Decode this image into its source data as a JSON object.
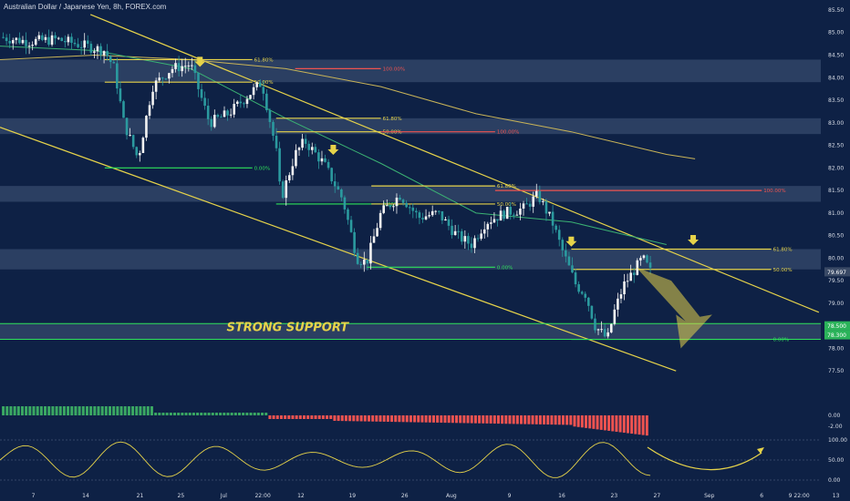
{
  "title": "Australian Dollar / Japanese Yen, 8h, FOREX.com",
  "annotation": "STRONG SUPPORT",
  "colors": {
    "background": "#0e2145",
    "up": "#f2f2f2",
    "down": "#2b9a9f",
    "trend": "#e6d34a",
    "green": "#2ee35b",
    "red": "#ef5350",
    "zone": "#4f6486"
  },
  "chart_data": {
    "type": "candlestick",
    "symbol": "AUDJPY",
    "timeframe": "8h",
    "ylim": [
      77.0,
      85.6
    ],
    "yticks": [
      "85.50",
      "85.00",
      "84.50",
      "84.00",
      "83.50",
      "83.00",
      "82.50",
      "82.00",
      "81.50",
      "81.00",
      "80.50",
      "80.00",
      "79.50",
      "79.00",
      "78.50",
      "78.00",
      "77.50"
    ],
    "xticks": [
      {
        "label": "7",
        "t": 0.035
      },
      {
        "label": "14",
        "t": 0.09
      },
      {
        "label": "21",
        "t": 0.147
      },
      {
        "label": "25",
        "t": 0.19
      },
      {
        "label": "Jul",
        "t": 0.235
      },
      {
        "label": "22:00",
        "t": 0.276
      },
      {
        "label": "12",
        "t": 0.316
      },
      {
        "label": "19",
        "t": 0.37
      },
      {
        "label": "26",
        "t": 0.425
      },
      {
        "label": "Aug",
        "t": 0.474
      },
      {
        "label": "9",
        "t": 0.535
      },
      {
        "label": "16",
        "t": 0.59
      },
      {
        "label": "23",
        "t": 0.645
      },
      {
        "label": "27",
        "t": 0.69
      },
      {
        "label": "Sep",
        "t": 0.745
      },
      {
        "label": "6",
        "t": 0.8
      },
      {
        "label": "9",
        "t": 0.83
      },
      {
        "label": "22:00",
        "t": 0.842
      },
      {
        "label": "13",
        "t": 0.878
      }
    ],
    "price_path": [
      [
        0.0,
        84.9
      ],
      [
        0.03,
        84.8
      ],
      [
        0.06,
        84.85
      ],
      [
        0.09,
        84.7
      ],
      [
        0.11,
        84.6
      ],
      [
        0.12,
        84.2
      ],
      [
        0.13,
        83.0
      ],
      [
        0.145,
        82.2
      ],
      [
        0.16,
        83.8
      ],
      [
        0.18,
        84.2
      ],
      [
        0.2,
        84.3
      ],
      [
        0.22,
        83.0
      ],
      [
        0.24,
        83.2
      ],
      [
        0.26,
        83.6
      ],
      [
        0.275,
        83.9
      ],
      [
        0.29,
        82.4
      ],
      [
        0.295,
        81.3
      ],
      [
        0.31,
        82.3
      ],
      [
        0.32,
        82.6
      ],
      [
        0.34,
        82.1
      ],
      [
        0.36,
        81.3
      ],
      [
        0.375,
        80.0
      ],
      [
        0.385,
        79.9
      ],
      [
        0.4,
        81.0
      ],
      [
        0.42,
        81.4
      ],
      [
        0.44,
        80.9
      ],
      [
        0.46,
        81.0
      ],
      [
        0.48,
        80.5
      ],
      [
        0.495,
        80.3
      ],
      [
        0.51,
        80.8
      ],
      [
        0.53,
        81.0
      ],
      [
        0.55,
        81.1
      ],
      [
        0.565,
        81.4
      ],
      [
        0.58,
        80.8
      ],
      [
        0.59,
        80.2
      ],
      [
        0.605,
        79.4
      ],
      [
        0.615,
        79.2
      ],
      [
        0.625,
        78.5
      ],
      [
        0.638,
        78.2
      ],
      [
        0.645,
        78.8
      ],
      [
        0.655,
        79.4
      ],
      [
        0.665,
        79.7
      ],
      [
        0.675,
        80.0
      ],
      [
        0.683,
        79.7
      ]
    ],
    "current_price": "79.697",
    "support_labels": [
      "78.500",
      "78.300"
    ],
    "fib_levels": [
      {
        "t0": 0.11,
        "t1": 0.265,
        "p": 84.4,
        "label": "61.80%",
        "color": "#e6d34a"
      },
      {
        "t0": 0.11,
        "t1": 0.265,
        "p": 83.9,
        "label": "50.00%",
        "color": "#e6d34a"
      },
      {
        "t0": 0.11,
        "t1": 0.265,
        "p": 82.0,
        "label": "0.00%",
        "color": "#2ee35b"
      },
      {
        "t0": 0.29,
        "t1": 0.4,
        "p": 83.1,
        "label": "61.80%",
        "color": "#e6d34a"
      },
      {
        "t0": 0.29,
        "t1": 0.4,
        "p": 82.8,
        "label": "50.00%",
        "color": "#e6d34a"
      },
      {
        "t0": 0.29,
        "t1": 0.4,
        "p": 81.2,
        "label": "0.00%",
        "color": "#2ee35b"
      },
      {
        "t0": 0.39,
        "t1": 0.52,
        "p": 81.6,
        "label": "61.80%",
        "color": "#e6d34a"
      },
      {
        "t0": 0.39,
        "t1": 0.52,
        "p": 81.2,
        "label": "50.00%",
        "color": "#e6d34a"
      },
      {
        "t0": 0.385,
        "t1": 0.52,
        "p": 79.8,
        "label": "0.00%",
        "color": "#2ee35b"
      },
      {
        "t0": 0.6,
        "t1": 0.81,
        "p": 80.2,
        "label": "61.80%",
        "color": "#e6d34a"
      },
      {
        "t0": 0.6,
        "t1": 0.81,
        "p": 79.75,
        "label": "50.00%",
        "color": "#e6d34a"
      },
      {
        "t0": 0.6,
        "t1": 0.81,
        "p": 78.2,
        "label": "0.00%",
        "color": "#2ee35b"
      }
    ],
    "red_targets": [
      {
        "t0": 0.31,
        "t1": 0.4,
        "p": 84.2,
        "label": "100.00%"
      },
      {
        "t0": 0.4,
        "t1": 0.52,
        "p": 82.8,
        "label": "100.00%"
      },
      {
        "t0": 0.52,
        "t1": 0.8,
        "p": 81.5,
        "label": "100.00%"
      }
    ],
    "zones": [
      {
        "p0": 84.4,
        "p1": 83.9
      },
      {
        "p0": 83.1,
        "p1": 82.75
      },
      {
        "p0": 81.6,
        "p1": 81.25
      },
      {
        "p0": 80.2,
        "p1": 79.75
      },
      {
        "p0": 78.55,
        "p1": 78.2
      }
    ],
    "arrows_down_t": [
      0.21,
      0.35,
      0.6,
      0.728
    ],
    "ma_fast": [
      [
        0.0,
        84.7
      ],
      [
        0.1,
        84.6
      ],
      [
        0.2,
        84.2
      ],
      [
        0.3,
        83.1
      ],
      [
        0.4,
        82.1
      ],
      [
        0.5,
        81.0
      ],
      [
        0.6,
        80.8
      ],
      [
        0.7,
        80.3
      ]
    ],
    "ma_slow": [
      [
        0.0,
        84.4
      ],
      [
        0.1,
        84.5
      ],
      [
        0.2,
        84.4
      ],
      [
        0.3,
        84.2
      ],
      [
        0.4,
        83.8
      ],
      [
        0.5,
        83.2
      ],
      [
        0.6,
        82.8
      ],
      [
        0.7,
        82.3
      ],
      [
        0.73,
        82.2
      ]
    ],
    "osc_yticks": [
      "100.00",
      "50.00",
      "0.00"
    ],
    "hist_yticks": [
      "0.00",
      "-2.00"
    ]
  }
}
